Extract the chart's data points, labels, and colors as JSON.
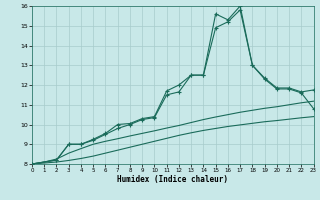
{
  "xlabel": "Humidex (Indice chaleur)",
  "xlim": [
    0,
    23
  ],
  "ylim": [
    8,
    16
  ],
  "yticks": [
    8,
    9,
    10,
    11,
    12,
    13,
    14,
    15,
    16
  ],
  "xticks": [
    0,
    1,
    2,
    3,
    4,
    5,
    6,
    7,
    8,
    9,
    10,
    11,
    12,
    13,
    14,
    15,
    16,
    17,
    18,
    19,
    20,
    21,
    22,
    23
  ],
  "bg": "#c8e8e8",
  "grid_color": "#a8cccc",
  "lc": "#1a6b5a",
  "line1_x": [
    0,
    1,
    2,
    3,
    4,
    5,
    6,
    7,
    8,
    9,
    10,
    11,
    12,
    13,
    14,
    15,
    16,
    17,
    18,
    19,
    20,
    21,
    22,
    23
  ],
  "line1_y": [
    8.0,
    8.05,
    8.1,
    8.18,
    8.28,
    8.4,
    8.55,
    8.7,
    8.85,
    9.0,
    9.15,
    9.3,
    9.45,
    9.58,
    9.7,
    9.8,
    9.9,
    9.98,
    10.06,
    10.14,
    10.2,
    10.27,
    10.34,
    10.4
  ],
  "line2_x": [
    0,
    1,
    2,
    3,
    4,
    5,
    6,
    7,
    8,
    9,
    10,
    11,
    12,
    13,
    14,
    15,
    16,
    17,
    18,
    19,
    20,
    21,
    22,
    23
  ],
  "line2_y": [
    8.0,
    8.1,
    8.25,
    8.55,
    8.78,
    9.0,
    9.15,
    9.28,
    9.42,
    9.55,
    9.68,
    9.82,
    9.95,
    10.1,
    10.25,
    10.38,
    10.5,
    10.62,
    10.72,
    10.82,
    10.9,
    11.0,
    11.1,
    11.18
  ],
  "line3_x": [
    0,
    2,
    3,
    4,
    5,
    6,
    7,
    8,
    9,
    10,
    11,
    12,
    13,
    14,
    15,
    16,
    17,
    18,
    19,
    20,
    21,
    22,
    23
  ],
  "line3_y": [
    8.0,
    8.2,
    9.0,
    9.0,
    9.2,
    9.5,
    9.8,
    10.0,
    10.25,
    10.35,
    11.5,
    11.65,
    12.5,
    12.5,
    14.9,
    15.2,
    15.8,
    13.0,
    12.3,
    11.8,
    11.8,
    11.6,
    10.8
  ],
  "line4_x": [
    0,
    2,
    3,
    4,
    5,
    6,
    7,
    8,
    9,
    10,
    11,
    12,
    13,
    14,
    15,
    16,
    17,
    18,
    19,
    20,
    21,
    22,
    23
  ],
  "line4_y": [
    8.0,
    8.2,
    9.0,
    9.0,
    9.25,
    9.55,
    10.0,
    10.05,
    10.3,
    10.4,
    11.7,
    12.0,
    12.5,
    12.5,
    15.6,
    15.3,
    16.0,
    13.0,
    12.35,
    11.85,
    11.85,
    11.65,
    11.75
  ]
}
